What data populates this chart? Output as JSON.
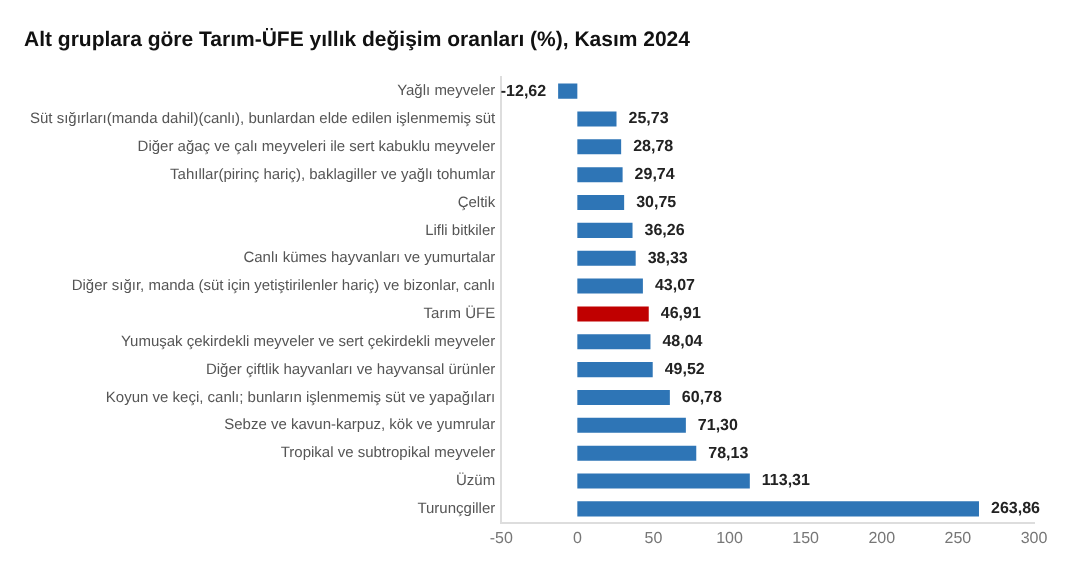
{
  "chart_data": {
    "type": "bar",
    "orientation": "horizontal",
    "title": "Alt gruplara göre Tarım-ÜFE yıllık değişim oranları (%), Kasım 2024",
    "categories": [
      "Yağlı meyveler",
      "Süt sığırları(manda dahil)(canlı), bunlardan elde edilen işlenmemiş süt",
      "Diğer ağaç ve çalı meyveleri ile sert kabuklu meyveler",
      "Tahıllar(pirinç hariç), baklagiller ve yağlı tohumlar",
      "Çeltik",
      "Lifli bitkiler",
      "Canlı kümes hayvanları ve yumurtalar",
      "Diğer sığır, manda (süt için yetiştirilenler hariç) ve bizonlar, canlı",
      "Tarım ÜFE",
      "Yumuşak çekirdekli meyveler ve sert çekirdekli meyveler",
      "Diğer çiftlik hayvanları ve hayvansal ürünler",
      "Koyun ve keçi, canlı; bunların işlenmemiş süt ve yapağıları",
      "Sebze ve kavun-karpuz, kök ve yumrular",
      "Tropikal ve subtropikal meyveler",
      "Üzüm",
      "Turunçgiller"
    ],
    "values": [
      -12.62,
      25.73,
      28.78,
      29.74,
      30.75,
      36.26,
      38.33,
      43.07,
      46.91,
      48.04,
      49.52,
      60.78,
      71.3,
      78.13,
      113.31,
      263.86
    ],
    "value_labels": [
      "-12,62",
      "25,73",
      "28,78",
      "29,74",
      "30,75",
      "36,26",
      "38,33",
      "43,07",
      "46,91",
      "48,04",
      "49,52",
      "60,78",
      "71,30",
      "78,13",
      "113,31",
      "263,86"
    ],
    "colors": [
      "#2e75b6",
      "#2e75b6",
      "#2e75b6",
      "#2e75b6",
      "#2e75b6",
      "#2e75b6",
      "#2e75b6",
      "#2e75b6",
      "#c00000",
      "#2e75b6",
      "#2e75b6",
      "#2e75b6",
      "#2e75b6",
      "#2e75b6",
      "#2e75b6",
      "#2e75b6"
    ],
    "xlim": [
      -50,
      300
    ],
    "xticks": [
      -50,
      0,
      50,
      100,
      150,
      200,
      250,
      300
    ],
    "grid": false,
    "legend": false
  }
}
